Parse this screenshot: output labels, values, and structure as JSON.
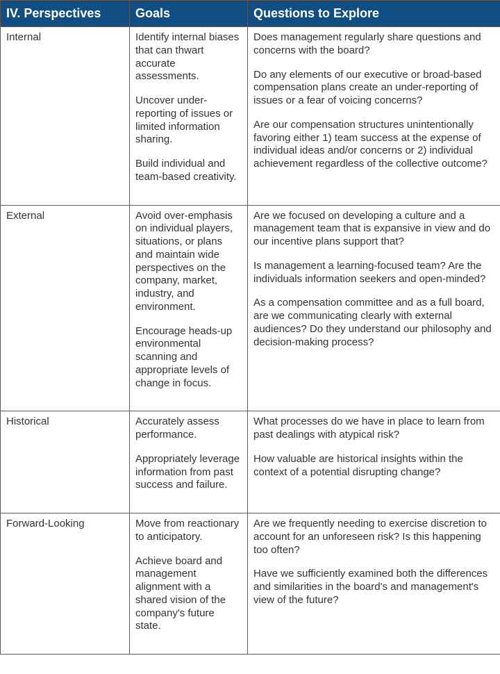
{
  "header_bg": "#104e84",
  "header_fg": "#ffffff",
  "body_fg": "#333333",
  "columns": [
    "IV. Perspectives",
    "Goals",
    "Questions to Explore"
  ],
  "rows": [
    {
      "perspective": "Internal",
      "goals": [
        "Identify internal biases that can thwart accurate assessments.",
        "Uncover under-reporting of issues or limited information sharing.",
        "Build individual and team-based creativity."
      ],
      "questions": [
        "Does management regularly share questions and concerns with the board?",
        "Do any elements of our executive or broad-based compensation plans create an under-reporting of issues or a fear of voicing concerns?",
        "Are our compensation structures unintentionally favoring either 1) team success at the expense of individual ideas and/or concerns or 2) individual achievement regardless of the collective outcome?"
      ]
    },
    {
      "perspective": "External",
      "goals": [
        "Avoid over-emphasis on individual players, situations, or plans and maintain wide perspectives on the company, market, industry, and environment.",
        "Encourage heads-up environmental scanning and appropriate levels of change in focus."
      ],
      "questions": [
        "Are we focused on developing a culture and a management team that is expansive in view and do our incentive plans support that?",
        "Is management a learning-focused team? Are the individuals information seekers and open-minded?",
        "As a compensation committee and as a full board, are we communicating clearly with external audiences? Do they understand our philosophy and decision-making process?"
      ]
    },
    {
      "perspective": "Historical",
      "goals": [
        "Accurately assess performance.",
        "Appropriately leverage information from past success and failure."
      ],
      "questions": [
        "What processes do we have in place to learn from past dealings with atypical risk?",
        "How valuable are historical insights within the context of a potential disrupting change?"
      ]
    },
    {
      "perspective": "Forward-Looking",
      "goals": [
        "Move from reactionary to anticipatory.",
        "Achieve board and management alignment with a shared vision of the company's future state."
      ],
      "questions": [
        "Are we frequently  needing to exercise discretion to account for an unforeseen risk? Is this happening too often?",
        "Have we sufficiently examined both the differences and similarities in the board's and management's view of the future?"
      ]
    }
  ]
}
